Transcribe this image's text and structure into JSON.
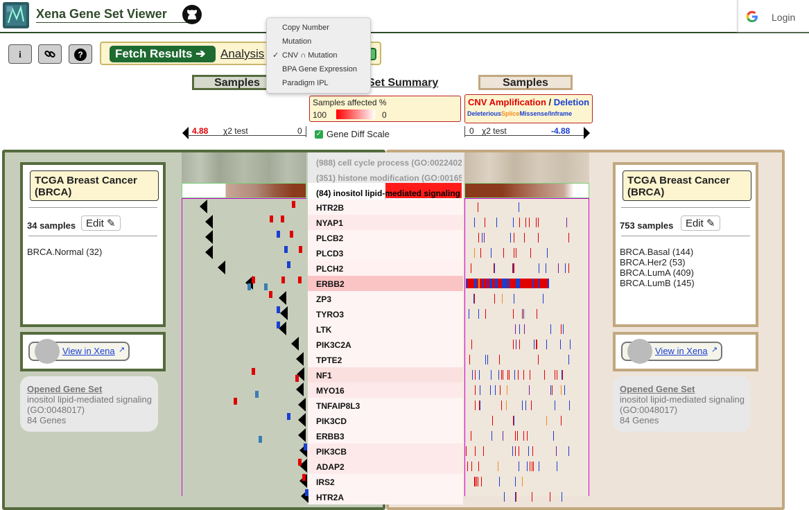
{
  "header": {
    "title": "Xena Gene Set Viewer",
    "login_label": "Login"
  },
  "toolbar": {
    "info_label": "i",
    "help_label": "?",
    "fetch_label": "Fetch Results ➔",
    "analysis_label": "Analysis"
  },
  "dropdown": {
    "items": [
      "Copy Number",
      "Mutation",
      "CNV ∩ Mutation",
      "BPA Gene Expression",
      "Paradigm IPL"
    ],
    "checked_item": "CNV ∩ Mutation",
    "check_mark": "✓"
  },
  "columns": {
    "samples_left": "Samples",
    "samples_right": "Samples",
    "gene_set_summary": "Set Summary"
  },
  "legend_mid": {
    "title": "Samples affected %",
    "max": "100",
    "min": "0"
  },
  "legend_right": {
    "amp": "CNV Amplification",
    "sep": "/",
    "del": "Deletion",
    "deleterious": "Deleterious",
    "splice": "Splice",
    "missense": "Missense/Inframe"
  },
  "axis_left": {
    "value": "4.88",
    "label": "χ2 test",
    "zero": "0"
  },
  "axis_right": {
    "zero": "0",
    "label": "χ2 test",
    "value": "-4.88"
  },
  "gene_diff": {
    "label": "Gene Diff Scale",
    "checked": true
  },
  "left_panel": {
    "cohort": "TCGA Breast Cancer (BRCA)",
    "samples": "34 samples",
    "edit": "Edit",
    "subtypes": [
      "BRCA.Normal (32)"
    ],
    "view_in_xena": "View in Xena",
    "opened_title": "Opened Gene Set",
    "opened_name": "inositol lipid-mediated signaling",
    "opened_go": "(GO:0048017)",
    "opened_count": "84 Genes"
  },
  "right_panel": {
    "cohort": "TCGA Breast Cancer (BRCA)",
    "samples": "753 samples",
    "edit": "Edit",
    "subtypes": [
      "BRCA.Basal (144)",
      "BRCA.Her2 (53)",
      "BRCA.LumA (409)",
      "BRCA.LumB (145)"
    ],
    "view_in_xena": "View in Xena",
    "opened_title": "Opened Gene Set",
    "opened_name": "inositol lipid-mediated signaling",
    "opened_go": "(GO:0048017)",
    "opened_count": "84 Genes"
  },
  "gene_sets": [
    "(988) cell cycle process (GO:0022402",
    "(351) histone modification (GO:00165",
    "(84) inositol lipid-mediated signaling"
  ],
  "genes": [
    "HTR2B",
    "NYAP1",
    "PLCB2",
    "PLCD3",
    "PLCH2",
    "ERBB2",
    "ZP3",
    "TYRO3",
    "LTK",
    "PIK3C2A",
    "TPTE2",
    "NF1",
    "MYO16",
    "TNFAIP8L3",
    "PIK3CD",
    "ERBB3",
    "PIK3CB",
    "ADAP2",
    "IRS2",
    "HTR2A"
  ],
  "colors": {
    "left_accent": "#556b3e",
    "right_accent": "#c2a880",
    "amplification": "#e00000",
    "deletion": "#1a3fd0",
    "splice": "#f28c1c",
    "fetch": "#1e6b32"
  }
}
